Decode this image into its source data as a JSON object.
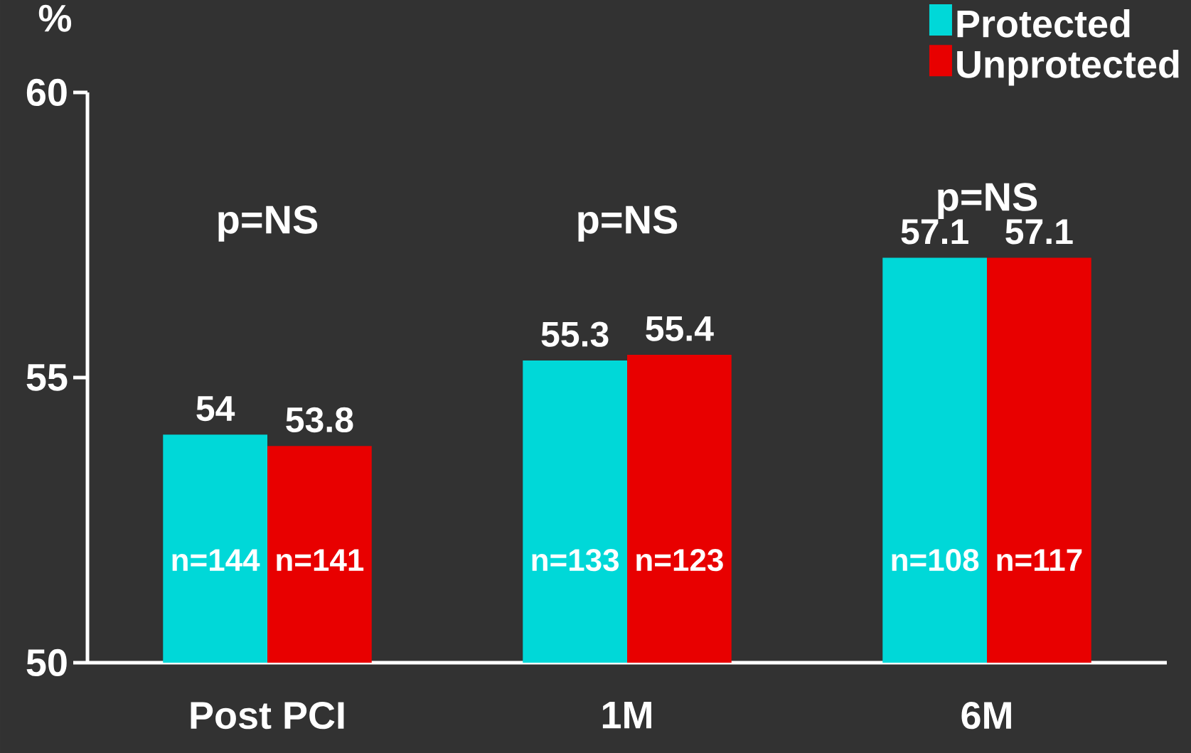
{
  "chart_data": {
    "type": "bar",
    "ylabel": "%",
    "categories": [
      "Post PCI",
      "1M",
      "6M"
    ],
    "series": [
      {
        "name": "Protected",
        "color": "#00d8d8",
        "values": [
          54,
          55.3,
          57.1
        ]
      },
      {
        "name": "Unprotected",
        "color": "#e80000",
        "values": [
          53.8,
          55.4,
          57.1
        ]
      }
    ],
    "ylim": [
      50,
      60
    ],
    "yticks": [
      50,
      55,
      60
    ],
    "data_labels": true,
    "legend": "top right",
    "grid": false,
    "annotations": [
      "p=NS",
      "p=NS",
      "p=NS",
      "n=144",
      "n=141",
      "n=133",
      "n=123",
      "n=108",
      "n=117"
    ]
  }
}
